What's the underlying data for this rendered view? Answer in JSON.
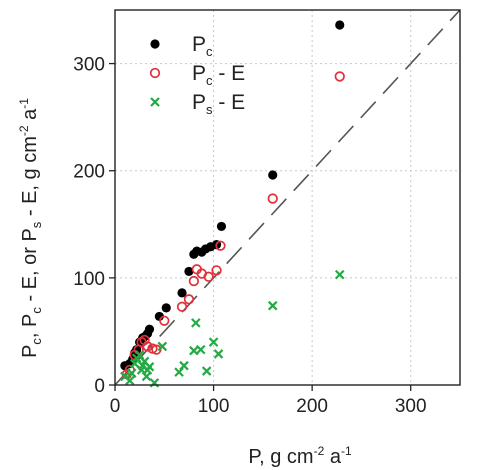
{
  "chart_data": {
    "type": "scatter",
    "xlabel": {
      "base": "P, g cm",
      "sup1": "-2",
      "mid": " a",
      "sup2": "-1"
    },
    "ylabel": {
      "p1": "P",
      "s1": "c",
      "p2": ", P",
      "s2": "c",
      "p3": " - E, or P",
      "s3": "s",
      "p4": " - E, g cm",
      "sup1": "-2",
      "p5": " a",
      "sup2": "-1"
    },
    "xlim": [
      0,
      350
    ],
    "ylim": [
      0,
      350
    ],
    "xticks": [
      0,
      100,
      200,
      300
    ],
    "yticks": [
      0,
      100,
      200,
      300
    ],
    "xtick_labels": [
      "0",
      "100",
      "200",
      "300"
    ],
    "ytick_labels": [
      "0",
      "100",
      "200",
      "300"
    ],
    "grid": true,
    "legend_position": "top-left",
    "reference_line": "1:1 dashed",
    "series": [
      {
        "name": "Pc",
        "label_main": "P",
        "label_sub": "c",
        "label_suffix": "",
        "marker": "filled-circle",
        "color": "#000000",
        "points": [
          [
            10,
            18
          ],
          [
            15,
            20
          ],
          [
            18,
            24
          ],
          [
            20,
            30
          ],
          [
            22,
            33
          ],
          [
            25,
            40
          ],
          [
            28,
            44
          ],
          [
            30,
            45
          ],
          [
            33,
            48
          ],
          [
            35,
            52
          ],
          [
            45,
            64
          ],
          [
            52,
            72
          ],
          [
            68,
            86
          ],
          [
            75,
            106
          ],
          [
            80,
            122
          ],
          [
            83,
            125
          ],
          [
            88,
            124
          ],
          [
            92,
            127
          ],
          [
            97,
            129
          ],
          [
            103,
            131
          ],
          [
            108,
            148
          ],
          [
            160,
            196
          ],
          [
            228,
            336
          ]
        ]
      },
      {
        "name": "Pc - E",
        "label_main": "P",
        "label_sub": "c",
        "label_suffix": " - E",
        "marker": "open-circle",
        "color": "#e0303a",
        "points": [
          [
            12,
            10
          ],
          [
            15,
            14
          ],
          [
            20,
            28
          ],
          [
            24,
            33
          ],
          [
            27,
            40
          ],
          [
            30,
            42
          ],
          [
            33,
            36
          ],
          [
            38,
            34
          ],
          [
            42,
            33
          ],
          [
            50,
            60
          ],
          [
            68,
            73
          ],
          [
            75,
            80
          ],
          [
            80,
            97
          ],
          [
            83,
            108
          ],
          [
            88,
            104
          ],
          [
            95,
            101
          ],
          [
            103,
            107
          ],
          [
            107,
            130
          ],
          [
            160,
            174
          ],
          [
            228,
            288
          ]
        ]
      },
      {
        "name": "Ps - E",
        "label_main": "P",
        "label_sub": "s",
        "label_suffix": " - E",
        "marker": "x",
        "color": "#22aa44",
        "points": [
          [
            10,
            8
          ],
          [
            15,
            4
          ],
          [
            17,
            11
          ],
          [
            20,
            20
          ],
          [
            22,
            25
          ],
          [
            25,
            28
          ],
          [
            27,
            14
          ],
          [
            28,
            18
          ],
          [
            30,
            22
          ],
          [
            32,
            8
          ],
          [
            33,
            14
          ],
          [
            35,
            17
          ],
          [
            40,
            2
          ],
          [
            48,
            36
          ],
          [
            65,
            12
          ],
          [
            70,
            18
          ],
          [
            80,
            32
          ],
          [
            82,
            58
          ],
          [
            87,
            33
          ],
          [
            93,
            13
          ],
          [
            100,
            40
          ],
          [
            105,
            29
          ],
          [
            160,
            74
          ],
          [
            228,
            103
          ]
        ]
      }
    ]
  }
}
